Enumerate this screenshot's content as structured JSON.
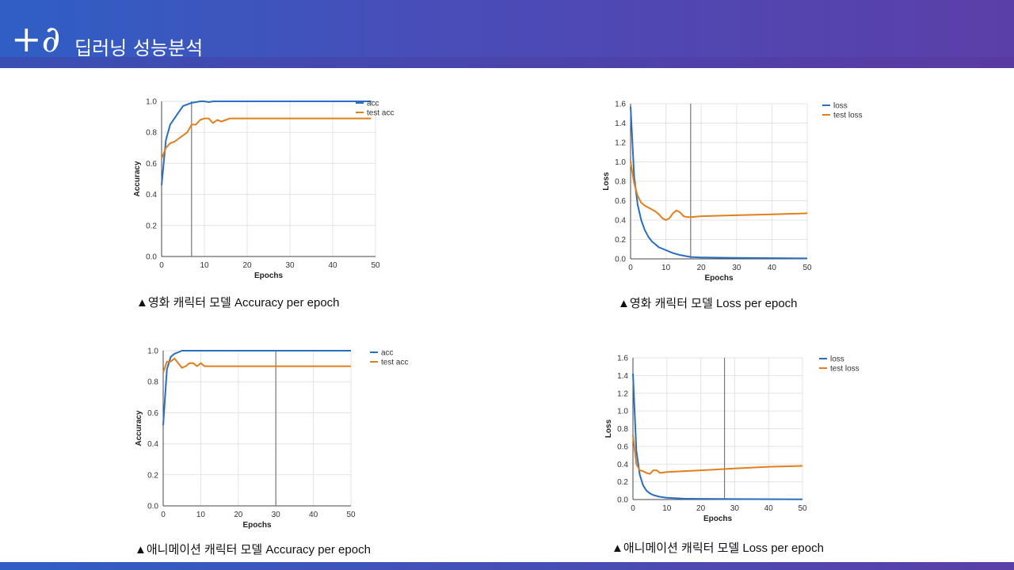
{
  "header": {
    "logo": "+∂",
    "title": "딥러닝 성능분석"
  },
  "colors": {
    "train": "#2a6ebd",
    "test": "#e07f1c",
    "grid": "#e3e3e3",
    "marker": "#777777"
  },
  "captions": {
    "c1": "▲영화 캐릭터 모델 Accuracy per epoch",
    "c2": "▲영화 캐릭터 모델 Loss per epoch",
    "c3": "▲애니메이션 캐릭터 모델 Accuracy per epoch",
    "c4": "▲애니메이션 캐릭터 모델 Loss per epoch"
  },
  "chart_data": [
    {
      "type": "line",
      "xlabel": "Epochs",
      "ylabel": "Accuracy",
      "xlim": [
        0,
        50
      ],
      "ylim": [
        0,
        1.0
      ],
      "xticks": [
        "0",
        "10",
        "20",
        "30",
        "40",
        "50"
      ],
      "yticks": [
        "0.0",
        "0.2",
        "0.4",
        "0.6",
        "0.8",
        "1.0"
      ],
      "marker_x": 7,
      "legend": [
        "acc",
        "test acc"
      ],
      "series": [
        {
          "name": "acc",
          "x": [
            0,
            1,
            2,
            3,
            4,
            5,
            6,
            7,
            8,
            9,
            10,
            11,
            12,
            14,
            49
          ],
          "y": [
            0.46,
            0.75,
            0.85,
            0.89,
            0.93,
            0.97,
            0.98,
            0.99,
            0.995,
            1.0,
            1.0,
            0.995,
            1.0,
            1.0,
            1.0
          ]
        },
        {
          "name": "test acc",
          "x": [
            0,
            1,
            2,
            3,
            4,
            5,
            6,
            7,
            8,
            9,
            10,
            11,
            12,
            13,
            14,
            15,
            16,
            17,
            49
          ],
          "y": [
            0.63,
            0.7,
            0.73,
            0.74,
            0.76,
            0.78,
            0.8,
            0.85,
            0.85,
            0.88,
            0.89,
            0.89,
            0.86,
            0.88,
            0.87,
            0.88,
            0.89,
            0.89,
            0.89
          ]
        }
      ]
    },
    {
      "type": "line",
      "xlabel": "Epochs",
      "ylabel": "Loss",
      "xlim": [
        0,
        50
      ],
      "ylim": [
        0,
        1.6
      ],
      "xticks": [
        "0",
        "10",
        "20",
        "30",
        "40",
        "50"
      ],
      "yticks": [
        "0.0",
        "0.2",
        "0.4",
        "0.6",
        "0.8",
        "1.0",
        "1.2",
        "1.4",
        "1.6"
      ],
      "marker_x": 17,
      "legend": [
        "loss",
        "test loss"
      ],
      "series": [
        {
          "name": "loss",
          "x": [
            0,
            1,
            2,
            3,
            4,
            5,
            6,
            8,
            10,
            12,
            14,
            17,
            20,
            30,
            50
          ],
          "y": [
            1.57,
            0.85,
            0.56,
            0.4,
            0.3,
            0.23,
            0.18,
            0.12,
            0.09,
            0.06,
            0.04,
            0.02,
            0.015,
            0.01,
            0.005
          ]
        },
        {
          "name": "test loss",
          "x": [
            0,
            1,
            2,
            3,
            4,
            5,
            6,
            7,
            8,
            9,
            10,
            11,
            12,
            13,
            14,
            15,
            16,
            17,
            20,
            30,
            40,
            50
          ],
          "y": [
            1.0,
            0.78,
            0.65,
            0.58,
            0.55,
            0.53,
            0.51,
            0.49,
            0.46,
            0.42,
            0.4,
            0.42,
            0.47,
            0.5,
            0.48,
            0.44,
            0.43,
            0.43,
            0.44,
            0.45,
            0.46,
            0.47
          ]
        }
      ]
    },
    {
      "type": "line",
      "xlabel": "Epochs",
      "ylabel": "Accuracy",
      "xlim": [
        0,
        50
      ],
      "ylim": [
        0,
        1.0
      ],
      "xticks": [
        "0",
        "10",
        "20",
        "30",
        "40",
        "50"
      ],
      "yticks": [
        "0.0",
        "0.2",
        "0.4",
        "0.6",
        "0.8",
        "1.0"
      ],
      "marker_x": 30,
      "legend": [
        "acc",
        "test acc"
      ],
      "series": [
        {
          "name": "acc",
          "x": [
            0,
            1,
            2,
            3,
            4,
            5,
            6,
            50
          ],
          "y": [
            0.52,
            0.88,
            0.96,
            0.98,
            0.99,
            1.0,
            1.0,
            1.0
          ]
        },
        {
          "name": "test acc",
          "x": [
            0,
            1,
            2,
            3,
            4,
            5,
            6,
            7,
            8,
            9,
            10,
            11,
            12,
            50
          ],
          "y": [
            0.86,
            0.93,
            0.93,
            0.95,
            0.92,
            0.89,
            0.9,
            0.92,
            0.92,
            0.9,
            0.92,
            0.9,
            0.9,
            0.9
          ]
        }
      ]
    },
    {
      "type": "line",
      "xlabel": "Epochs",
      "ylabel": "Loss",
      "xlim": [
        0,
        50
      ],
      "ylim": [
        0,
        1.6
      ],
      "xticks": [
        "0",
        "10",
        "20",
        "30",
        "40",
        "50"
      ],
      "yticks": [
        "0.0",
        "0.2",
        "0.4",
        "0.6",
        "0.8",
        "1.0",
        "1.2",
        "1.4",
        "1.6"
      ],
      "marker_x": 27,
      "legend": [
        "loss",
        "test loss"
      ],
      "series": [
        {
          "name": "loss",
          "x": [
            0,
            1,
            2,
            3,
            4,
            5,
            6,
            8,
            10,
            15,
            20,
            30,
            50
          ],
          "y": [
            1.42,
            0.55,
            0.28,
            0.16,
            0.1,
            0.07,
            0.05,
            0.03,
            0.02,
            0.01,
            0.008,
            0.005,
            0.003
          ]
        },
        {
          "name": "test loss",
          "x": [
            0,
            1,
            2,
            3,
            4,
            5,
            6,
            7,
            8,
            10,
            20,
            30,
            40,
            50
          ],
          "y": [
            0.73,
            0.4,
            0.33,
            0.32,
            0.3,
            0.29,
            0.33,
            0.33,
            0.3,
            0.31,
            0.33,
            0.35,
            0.37,
            0.38
          ]
        }
      ]
    }
  ]
}
